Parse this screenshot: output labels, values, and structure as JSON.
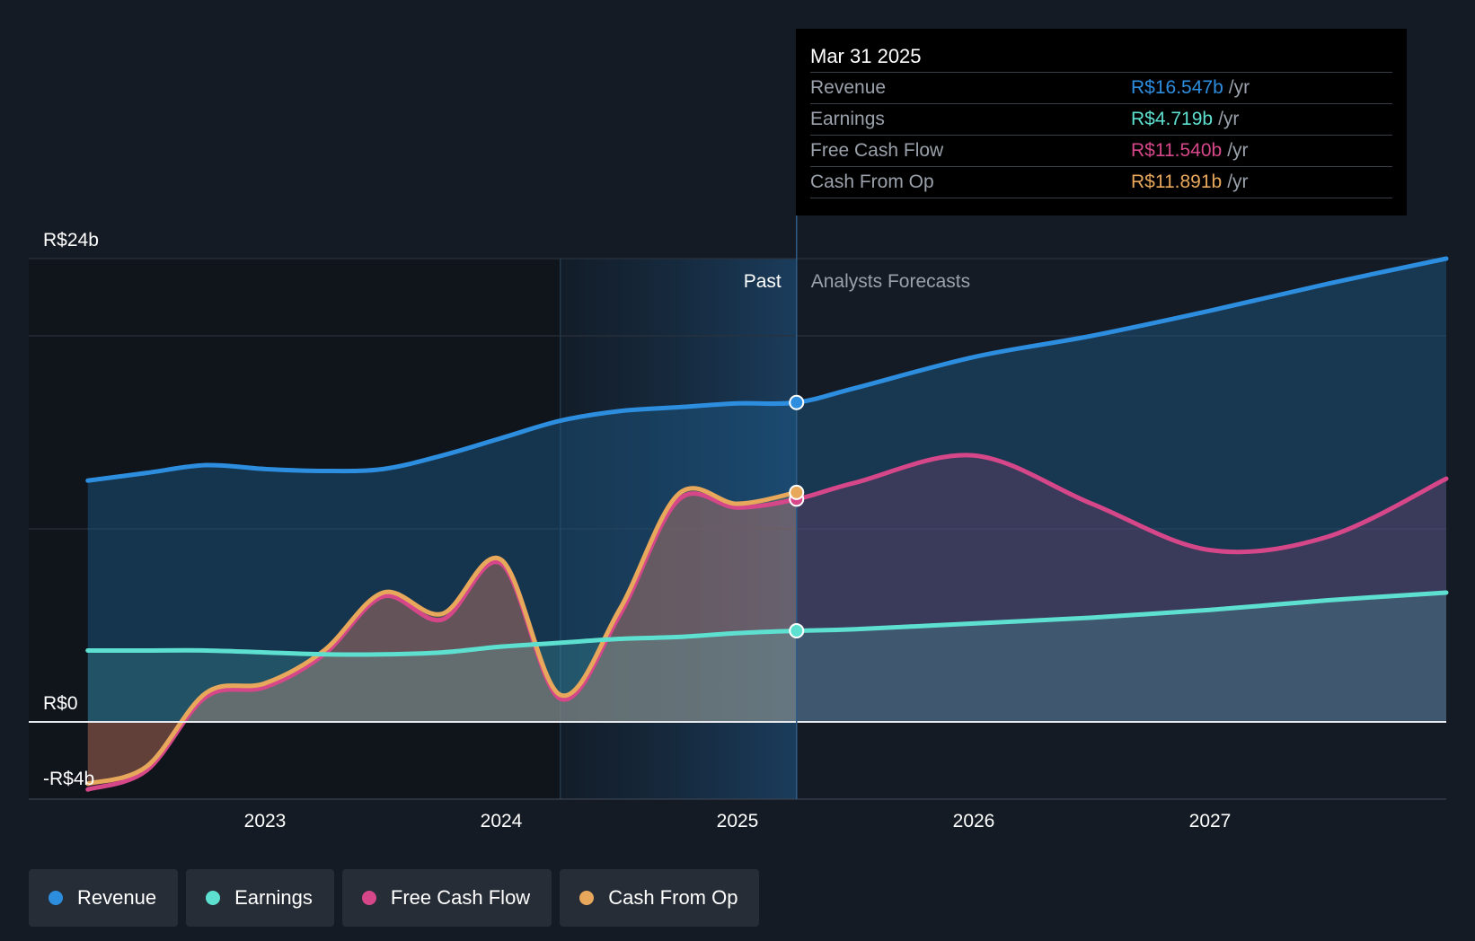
{
  "chart_data": {
    "type": "area",
    "y_axis": {
      "min": -4,
      "max": 24,
      "tick_labels": [
        "R$24b",
        "R$0",
        "-R$4b"
      ],
      "unit": "R$ billions"
    },
    "x_axis": {
      "tick_labels": [
        "2023",
        "2024",
        "2025",
        "2026",
        "2027"
      ]
    },
    "past_label": "Past",
    "forecast_label": "Analysts Forecasts",
    "divider_date": 2025.25,
    "past_shade_start": 2024.25,
    "series": [
      {
        "name": "Revenue",
        "color": "#2d8ee0",
        "points": [
          [
            2022.25,
            12.5
          ],
          [
            2022.5,
            12.9
          ],
          [
            2022.75,
            13.3
          ],
          [
            2023.0,
            13.1
          ],
          [
            2023.25,
            13.0
          ],
          [
            2023.5,
            13.1
          ],
          [
            2023.75,
            13.8
          ],
          [
            2024.0,
            14.7
          ],
          [
            2024.25,
            15.6
          ],
          [
            2024.5,
            16.1
          ],
          [
            2024.75,
            16.3
          ],
          [
            2025.0,
            16.5
          ],
          [
            2025.25,
            16.547
          ],
          [
            2025.5,
            17.3
          ],
          [
            2026.0,
            18.9
          ],
          [
            2026.5,
            20.0
          ],
          [
            2027.0,
            21.3
          ],
          [
            2027.5,
            22.7
          ],
          [
            2028.0,
            24.0
          ]
        ]
      },
      {
        "name": "Earnings",
        "color": "#5ee0d0",
        "points": [
          [
            2022.25,
            3.7
          ],
          [
            2022.5,
            3.7
          ],
          [
            2022.75,
            3.7
          ],
          [
            2023.0,
            3.6
          ],
          [
            2023.25,
            3.5
          ],
          [
            2023.5,
            3.5
          ],
          [
            2023.75,
            3.6
          ],
          [
            2024.0,
            3.9
          ],
          [
            2024.25,
            4.1
          ],
          [
            2024.5,
            4.3
          ],
          [
            2024.75,
            4.4
          ],
          [
            2025.0,
            4.6
          ],
          [
            2025.25,
            4.719
          ],
          [
            2025.5,
            4.8
          ],
          [
            2026.0,
            5.1
          ],
          [
            2026.5,
            5.4
          ],
          [
            2027.0,
            5.8
          ],
          [
            2027.5,
            6.3
          ],
          [
            2028.0,
            6.7
          ]
        ]
      },
      {
        "name": "Free Cash Flow",
        "color": "#d6478a",
        "points": [
          [
            2022.25,
            -3.5
          ],
          [
            2022.5,
            -2.5
          ],
          [
            2022.75,
            1.3
          ],
          [
            2023.0,
            1.8
          ],
          [
            2023.25,
            3.5
          ],
          [
            2023.5,
            6.5
          ],
          [
            2023.75,
            5.3
          ],
          [
            2024.0,
            8.2
          ],
          [
            2024.25,
            1.2
          ],
          [
            2024.5,
            5.5
          ],
          [
            2024.75,
            11.5
          ],
          [
            2025.0,
            11.1
          ],
          [
            2025.25,
            11.54
          ],
          [
            2025.5,
            12.4
          ],
          [
            2026.0,
            13.8
          ],
          [
            2026.5,
            11.3
          ],
          [
            2027.0,
            8.9
          ],
          [
            2027.5,
            9.6
          ],
          [
            2028.0,
            12.6
          ]
        ]
      },
      {
        "name": "Cash From Op",
        "color": "#e8a85c",
        "points": [
          [
            2022.25,
            -3.2
          ],
          [
            2022.5,
            -2.3
          ],
          [
            2022.75,
            1.5
          ],
          [
            2023.0,
            2.0
          ],
          [
            2023.25,
            3.7
          ],
          [
            2023.5,
            6.7
          ],
          [
            2023.75,
            5.6
          ],
          [
            2024.0,
            8.4
          ],
          [
            2024.25,
            1.4
          ],
          [
            2024.5,
            5.8
          ],
          [
            2024.75,
            11.8
          ],
          [
            2025.0,
            11.3
          ],
          [
            2025.25,
            11.891
          ]
        ]
      }
    ]
  },
  "tooltip": {
    "date": "Mar 31 2025",
    "unit": "/yr",
    "rows": [
      {
        "label": "Revenue",
        "value": "R$16.547b",
        "color": "#2d8ee0"
      },
      {
        "label": "Earnings",
        "value": "R$4.719b",
        "color": "#5ee0d0"
      },
      {
        "label": "Free Cash Flow",
        "value": "R$11.540b",
        "color": "#d6478a"
      },
      {
        "label": "Cash From Op",
        "value": "R$11.891b",
        "color": "#e8a85c"
      }
    ]
  },
  "legend": [
    {
      "label": "Revenue",
      "color": "#2d8ee0"
    },
    {
      "label": "Earnings",
      "color": "#5ee0d0"
    },
    {
      "label": "Free Cash Flow",
      "color": "#d6478a"
    },
    {
      "label": "Cash From Op",
      "color": "#e8a85c"
    }
  ]
}
